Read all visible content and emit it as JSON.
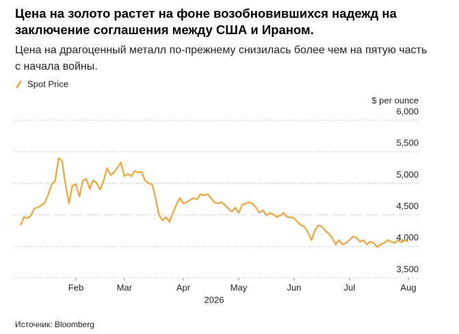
{
  "chart_data": {
    "type": "line",
    "title": "Цена на золото растет на фоне возобновившихся надежд на заключение соглашения между США и Ираном.",
    "subtitle": "Цена на драгоценный металл по-прежнему снизилась более чем на пятую часть с начала войны.",
    "y_axis_label": "$ per ounce",
    "x_axis_label": "2026",
    "source": "Источник: Bloomberg",
    "categories": [
      null,
      null,
      null,
      null,
      null,
      null,
      null,
      null,
      null,
      null,
      null,
      null,
      null,
      null,
      null,
      null,
      "Feb",
      null,
      null,
      null,
      null,
      null,
      null,
      null,
      null,
      null,
      null,
      null,
      null,
      null,
      "Mar",
      null,
      null,
      null,
      null,
      null,
      null,
      null,
      null,
      null,
      null,
      null,
      null,
      null,
      null,
      null,
      null,
      "Apr",
      null,
      null,
      null,
      null,
      null,
      null,
      null,
      null,
      null,
      null,
      null,
      null,
      null,
      null,
      null,
      "May",
      null,
      null,
      null,
      null,
      null,
      null,
      null,
      null,
      null,
      null,
      null,
      null,
      null,
      null,
      null,
      "Jun",
      null,
      null,
      null,
      null,
      null,
      null,
      null,
      null,
      null,
      null,
      null,
      null,
      null,
      null,
      null,
      "Jul",
      null,
      null,
      null,
      null,
      null,
      null,
      null,
      null,
      null,
      null,
      null,
      null,
      null,
      null,
      null,
      null,
      "Aug"
    ],
    "series": [
      {
        "name": "Spot Price",
        "color": "#f4a332",
        "values": [
          4335,
          4465,
          4445,
          4487,
          4600,
          4620,
          4650,
          4690,
          4820,
          4985,
          5040,
          5400,
          5350,
          4985,
          4680,
          4965,
          4985,
          4790,
          5040,
          5070,
          4910,
          5050,
          5000,
          4900,
          5040,
          5240,
          5130,
          5170,
          5250,
          5330,
          5110,
          5150,
          5110,
          5200,
          5170,
          5180,
          5040,
          5000,
          4985,
          4770,
          4500,
          4410,
          4465,
          4390,
          4530,
          4660,
          4770,
          4680,
          4700,
          4735,
          4770,
          4745,
          4830,
          4810,
          4830,
          4770,
          4700,
          4680,
          4700,
          4660,
          4600,
          4550,
          4615,
          4530,
          4660,
          4680,
          4700,
          4680,
          4615,
          4530,
          4575,
          4490,
          4530,
          4510,
          4465,
          4490,
          4530,
          4465,
          4465,
          4445,
          4390,
          4335,
          4315,
          4225,
          4100,
          4250,
          4335,
          4315,
          4250,
          4205,
          4140,
          4030,
          4100,
          4030,
          4055,
          4100,
          4160,
          4140,
          4075,
          4100,
          4030,
          4075,
          4055,
          3990,
          4030,
          4055,
          4100,
          4075,
          4055,
          4100,
          4065,
          4100,
          4075
        ]
      }
    ],
    "ylim": [
      3500,
      6000
    ],
    "yticks": [
      {
        "value": 3500,
        "label": "3,500"
      },
      {
        "value": 4000,
        "label": "4,000"
      },
      {
        "value": 4500,
        "label": "4,500"
      },
      {
        "value": 5000,
        "label": "5,000"
      },
      {
        "value": 5500,
        "label": "5,500"
      },
      {
        "value": 6000,
        "label": "6,000"
      }
    ],
    "grid": true
  }
}
